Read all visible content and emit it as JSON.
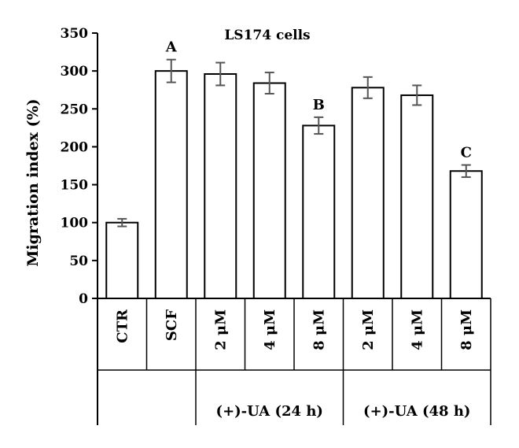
{
  "chart_data": {
    "type": "bar",
    "title": "LS174 cells",
    "ylabel": "Migration index (%)",
    "xlabel": "",
    "ylim": [
      0,
      350
    ],
    "yticks": [
      0,
      50,
      100,
      150,
      200,
      250,
      300,
      350
    ],
    "grid": false,
    "categories": [
      "CTR",
      "SCF",
      "2 μM",
      "4 μM",
      "8 μM",
      "2 μM",
      "4 μM",
      "8 μM"
    ],
    "values": [
      100,
      300,
      296,
      284,
      228,
      278,
      268,
      168
    ],
    "errors": [
      5,
      15,
      15,
      14,
      11,
      14,
      13,
      8
    ],
    "annotations": [
      {
        "index": 1,
        "text": "A"
      },
      {
        "index": 4,
        "text": "B"
      },
      {
        "index": 7,
        "text": "C"
      }
    ],
    "groups": [
      {
        "label": "(+)-UA (24 h)",
        "start": 2,
        "end": 4
      },
      {
        "label": "(+)-UA (48 h)",
        "start": 5,
        "end": 7
      }
    ],
    "colors": {
      "bar_fill": "#ffffff",
      "bar_stroke": "#000000",
      "error_bar": "#555555"
    }
  }
}
